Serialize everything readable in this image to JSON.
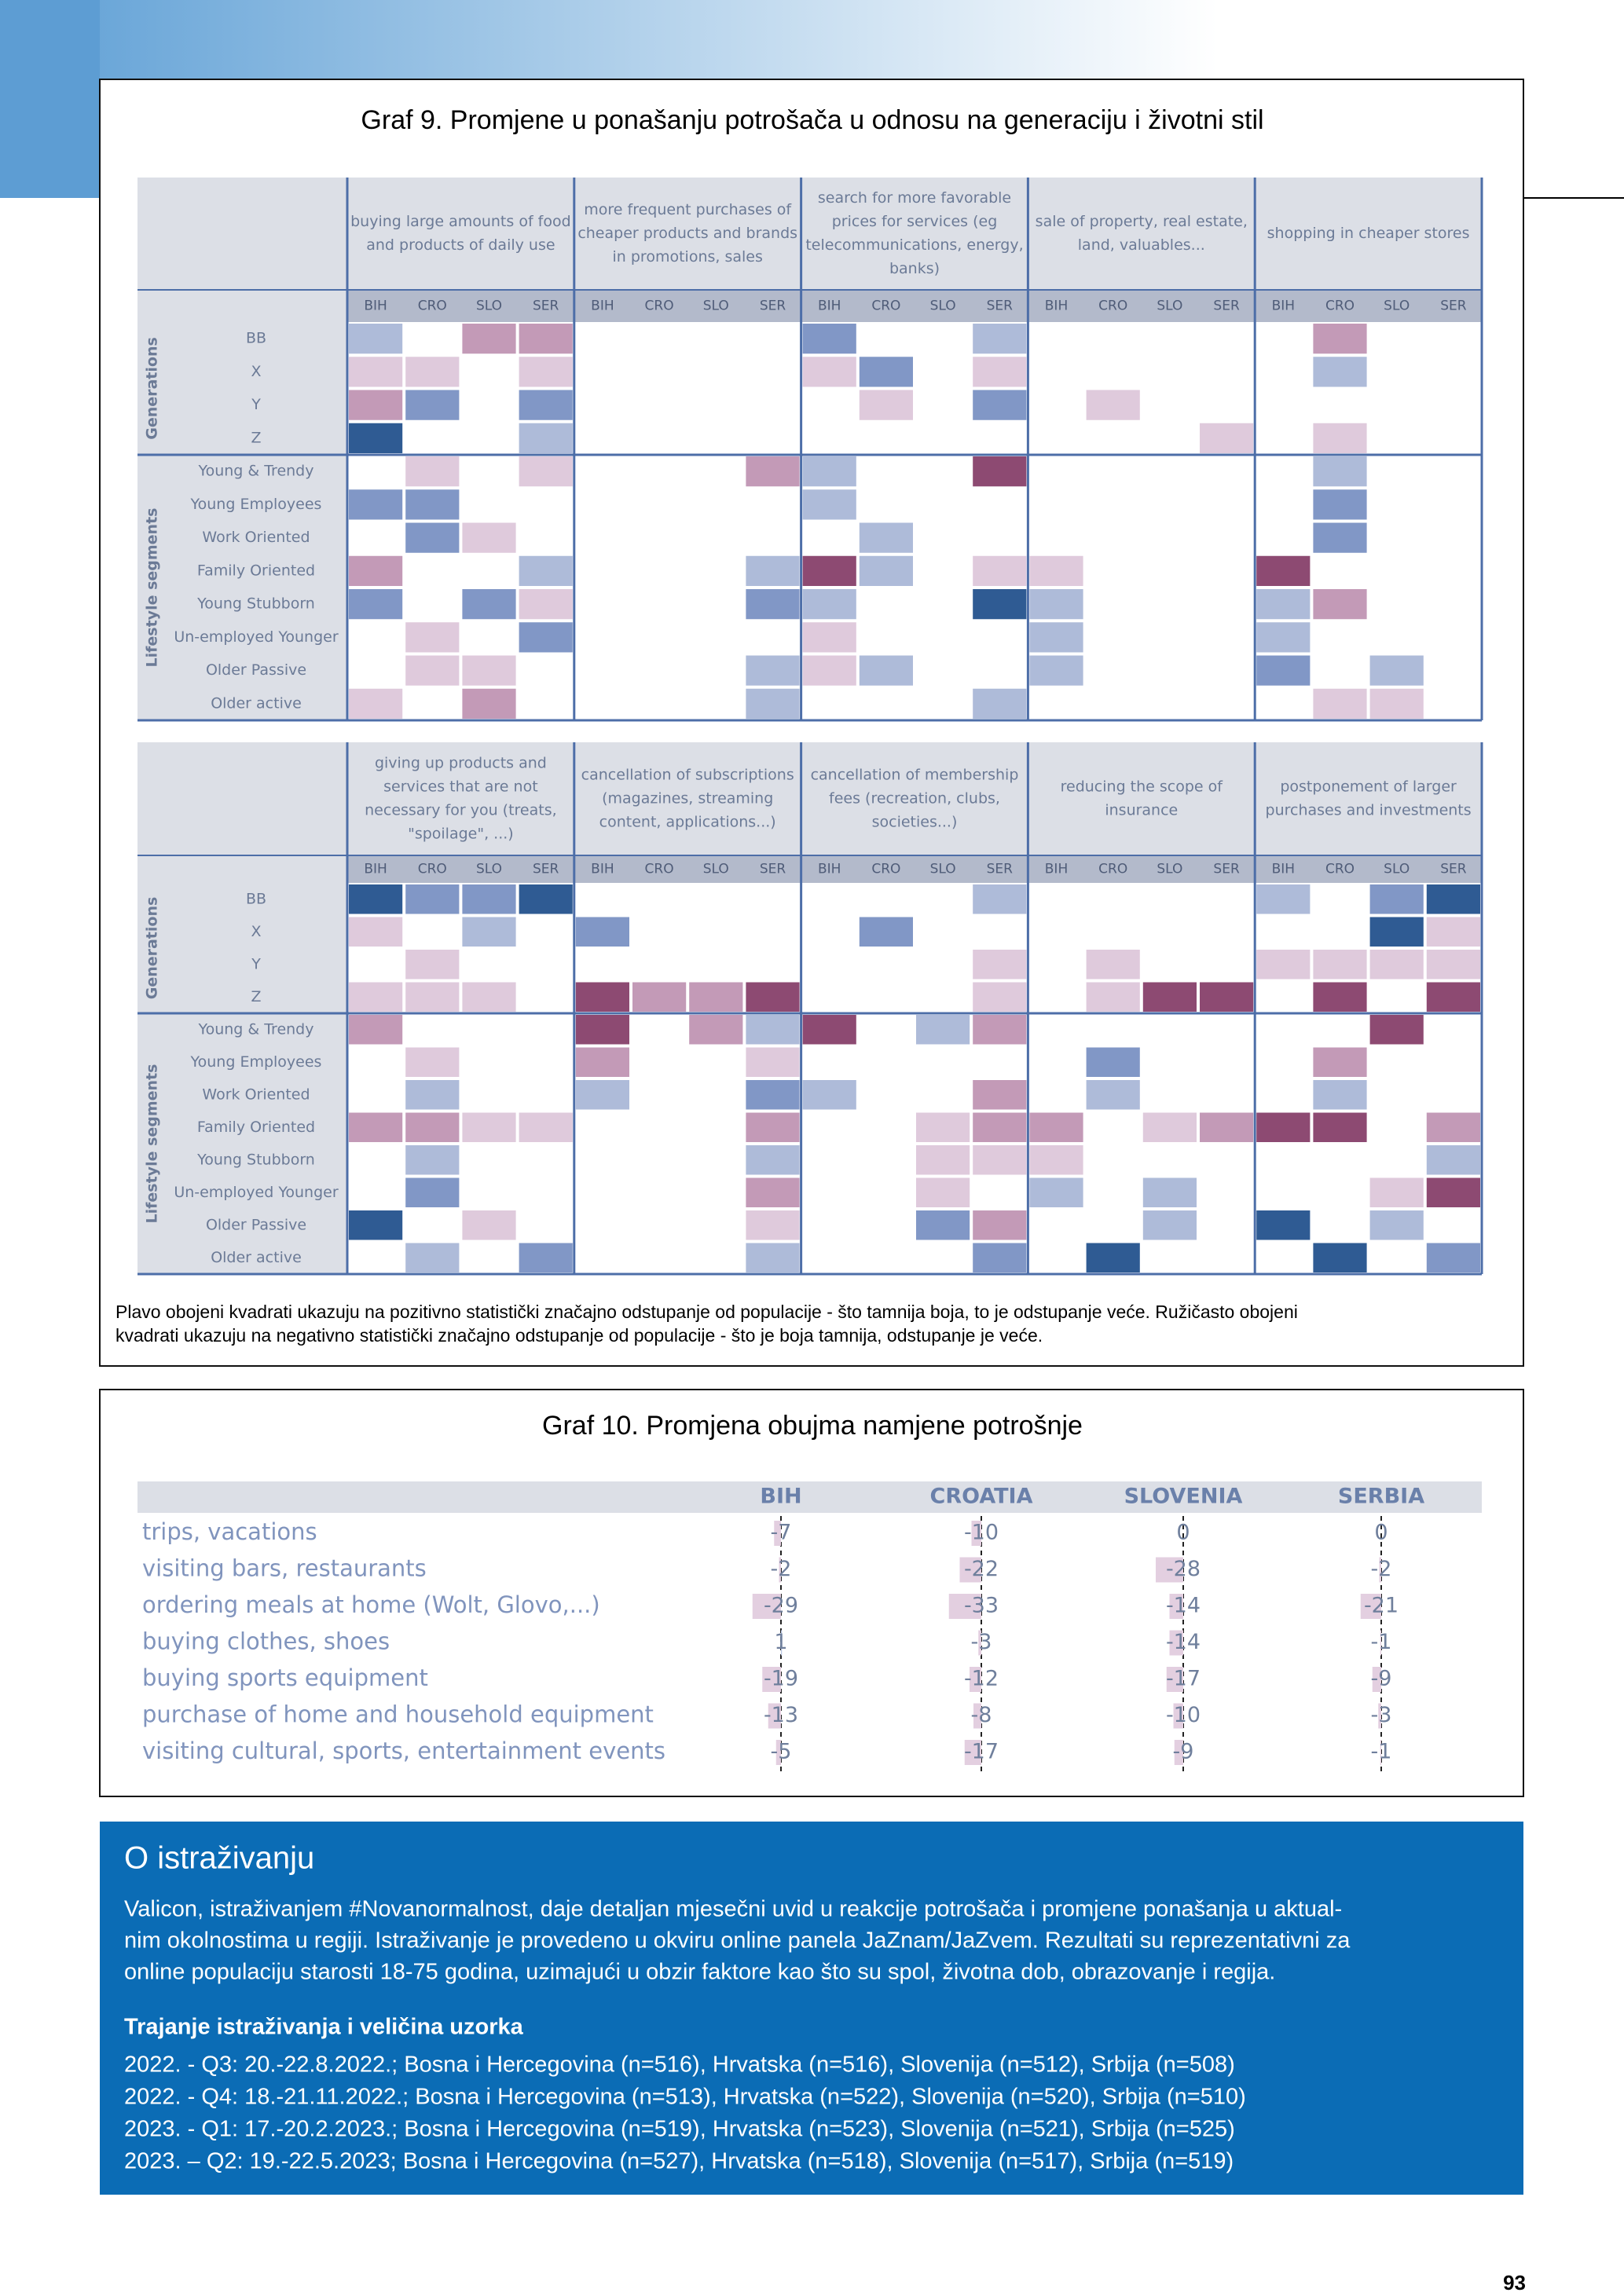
{
  "graf9": {
    "title": "Graf 9. Promjene u ponašanju potrošača u odnosu na generaciju i životni stil",
    "countries": [
      "BIH",
      "CRO",
      "SLO",
      "SER"
    ],
    "group_labels": [
      "Generations",
      "Lifestyle segments"
    ],
    "rows": [
      "BB",
      "X",
      "Y",
      "Z",
      "Young & Trendy",
      "Young Employees",
      "Work Oriented",
      "Family Oriented",
      "Young Stubborn",
      "Un-employed Younger",
      "Older Passive",
      "Older active"
    ],
    "panels": [
      {
        "headers": [
          [
            "buying large amounts of food",
            "and products of daily use"
          ],
          [
            "more frequent purchases of",
            "cheaper products and brands",
            "in promotions, sales"
          ],
          [
            "search for more favorable",
            "prices for services (eg",
            "telecommunications, energy,",
            "banks)"
          ],
          [
            "sale of property, real estate,",
            "land, valuables..."
          ],
          [
            "shopping in cheaper stores"
          ]
        ]
      },
      {
        "headers": [
          [
            "giving up products and",
            "services that are not",
            "necessary for you (treats,",
            "\"spoilage\", ...)"
          ],
          [
            "cancellation of subscriptions",
            "(magazines, streaming",
            "content, applications...)"
          ],
          [
            "cancellation of membership",
            "fees (recreation, clubs,",
            "societies...)"
          ],
          [
            "reducing the scope of",
            "insurance"
          ],
          [
            "postponement of larger",
            "purchases and investments"
          ]
        ]
      }
    ],
    "note": [
      "Plavo obojeni kvadrati ukazuju na pozitivno statistički značajno odstupanje od populacije - što tamnija boja, to je odstupanje veće. Ružičasto obojeni",
      "kvadrati ukazuju na negativno statistički značajno odstupanje od populacije - što je boja tamnija, odstupanje je veće."
    ]
  },
  "graf10": {
    "title": "Graf 10.  Promjena obujma namjene potrošnje",
    "columns": [
      "BIH",
      "CROATIA",
      "SLOVENIA",
      "SERBIA"
    ],
    "rows": [
      "trips, vacations",
      "visiting bars, restaurants",
      "ordering meals at home (Wolt, Glovo,...)",
      "buying clothes, shoes",
      "buying sports equipment",
      "purchase of home and household equipment",
      "visiting cultural, sports, entertainment events"
    ],
    "values": [
      [
        -7,
        -10,
        0,
        0
      ],
      [
        -2,
        -22,
        -28,
        -2
      ],
      [
        -29,
        -33,
        -14,
        -21
      ],
      [
        1,
        -3,
        -14,
        -1
      ],
      [
        -19,
        -12,
        -17,
        -9
      ],
      [
        -13,
        -8,
        -10,
        -3
      ],
      [
        -5,
        -17,
        -9,
        -1
      ]
    ]
  },
  "about": {
    "title": "O istraživanju",
    "paragraph": [
      "Valicon, istraživanjem #Novanormalnost, daje detaljan mjesečni uvid u reakcije potrošača i promjene ponašanja u aktual-",
      "nim okolnostima u regiji. Istraživanje je provedeno u okviru online panela  JaZnam/JaZvem. Rezultati su reprezentativni za",
      "online populaciju starosti 18-75 godina, uzimajući u obzir faktore kao što su spol, životna dob, obrazovanje i regija."
    ],
    "subtitle": "Trajanje istraživanja i veličina uzorka",
    "items": [
      "2022. - Q3: 20.-22.8.2022.; Bosna i Hercegovina (n=516), Hrvatska (n=516), Slovenija (n=512), Srbija (n=508)",
      "2022. - Q4: 18.-21.11.2022.; Bosna i Hercegovina (n=513), Hrvatska (n=522), Slovenija (n=520), Srbija (n=510)",
      "2023. - Q1: 17.-20.2.2023.; Bosna i Hercegovina (n=519), Hrvatska (n=523), Slovenija (n=521), Srbija (n=525)",
      "2023. – Q2: 19.-22.5.2023; Bosna i Hercegovina (n=527), Hrvatska (n=518), Slovenija (n=517), Srbija (n=519)"
    ]
  },
  "page_number": "93"
}
